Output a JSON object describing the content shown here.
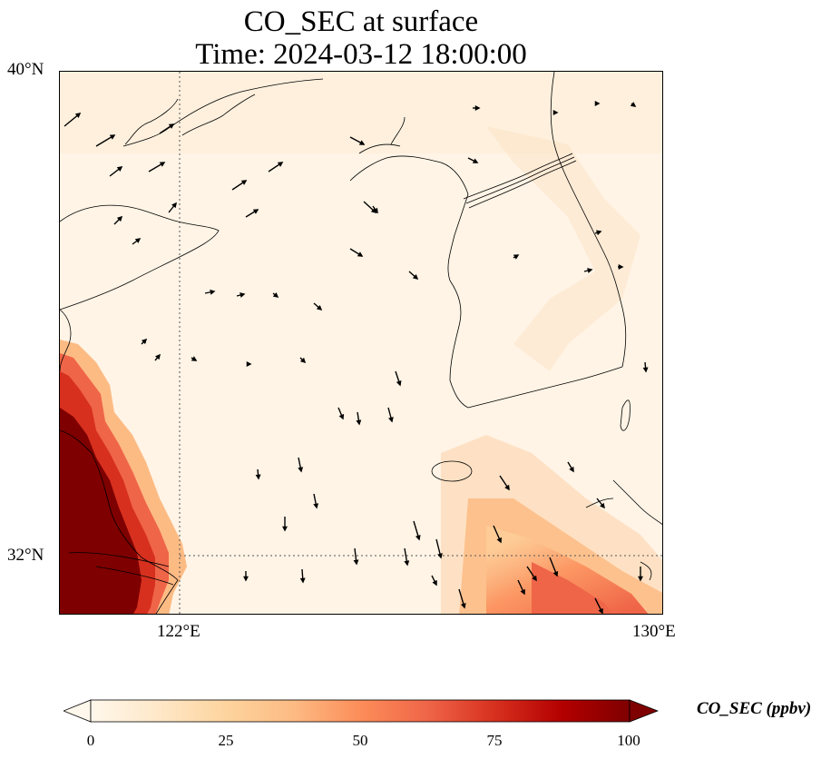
{
  "title": {
    "line1": "CO_SEC at surface",
    "line2": "Time: 2024-03-12 18:00:00"
  },
  "axes": {
    "lat_labels": [
      "40°N",
      "32°N"
    ],
    "lon_labels": [
      "122°E",
      "130°E"
    ],
    "lat_range": [
      31,
      40
    ],
    "lon_range": [
      120,
      130
    ],
    "gridlines": {
      "lon": 122,
      "lat": 32,
      "style": "dotted"
    }
  },
  "colorbar": {
    "label": "CO_SEC (ppbv)",
    "ticks": [
      "0",
      "25",
      "50",
      "75",
      "100"
    ],
    "range": [
      0,
      100
    ],
    "extend": "both",
    "colormap": "OrRd",
    "colors": [
      "#fff7ec",
      "#fee8c8",
      "#fdd49e",
      "#fdbb84",
      "#fc8d59",
      "#ef6548",
      "#d7301f",
      "#b30000",
      "#7f0000"
    ]
  },
  "overlays": {
    "coastlines": true,
    "wind_vectors": true
  }
}
